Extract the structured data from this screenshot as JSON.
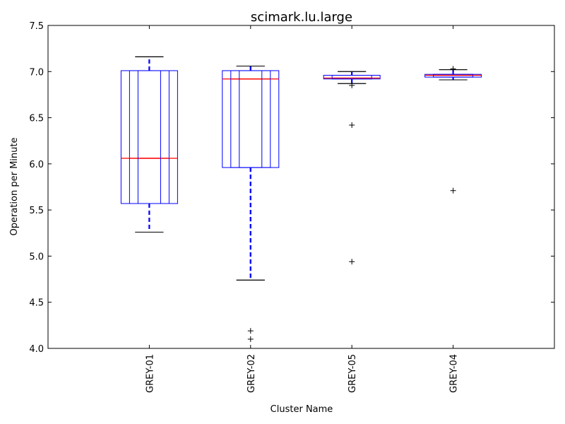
{
  "chart_data": {
    "type": "boxplot",
    "title": "scimark.lu.large",
    "xlabel": "Cluster Name",
    "ylabel": "Operation per Minute",
    "ylim": [
      4.0,
      7.5
    ],
    "yticks": [
      "4.0",
      "4.5",
      "5.0",
      "5.5",
      "6.0",
      "6.5",
      "7.0",
      "7.5"
    ],
    "categories": [
      "GREY-01",
      "GREY-02",
      "GREY-05",
      "GREY-04"
    ],
    "series": [
      {
        "name": "GREY-01",
        "boxes": [
          {
            "whislo": 5.26,
            "q1": 5.57,
            "med": 6.06,
            "q3": 7.01,
            "whishi": 7.16
          },
          {
            "whislo": 5.26,
            "q1": 5.57,
            "med": 6.06,
            "q3": 7.01,
            "whishi": 7.16
          },
          {
            "whislo": 5.26,
            "q1": 5.57,
            "med": 6.06,
            "q3": 7.01,
            "whishi": 7.16
          }
        ],
        "fliers": []
      },
      {
        "name": "GREY-02",
        "boxes": [
          {
            "whislo": 4.74,
            "q1": 5.96,
            "med": 6.92,
            "q3": 7.01,
            "whishi": 7.06
          },
          {
            "whislo": 4.74,
            "q1": 5.96,
            "med": 6.92,
            "q3": 7.01,
            "whishi": 7.06
          },
          {
            "whislo": 4.74,
            "q1": 5.96,
            "med": 6.92,
            "q3": 7.01,
            "whishi": 7.06
          }
        ],
        "fliers": [
          4.19,
          4.1
        ]
      },
      {
        "name": "GREY-05",
        "boxes": [
          {
            "whislo": 6.87,
            "q1": 6.92,
            "med": 6.93,
            "q3": 6.96,
            "whishi": 7.0
          },
          {
            "whislo": 6.87,
            "q1": 6.92,
            "med": 6.93,
            "q3": 6.96,
            "whishi": 7.0
          }
        ],
        "fliers": [
          6.85,
          6.42,
          4.94
        ]
      },
      {
        "name": "GREY-04",
        "boxes": [
          {
            "whislo": 6.91,
            "q1": 6.94,
            "med": 6.96,
            "q3": 6.97,
            "whishi": 7.02
          },
          {
            "whislo": 6.91,
            "q1": 6.94,
            "med": 6.96,
            "q3": 6.97,
            "whishi": 7.02
          }
        ],
        "fliers": [
          7.03,
          5.71
        ]
      }
    ],
    "colors": {
      "box": "#0000ff",
      "median": "#ff0000",
      "whisker": "#0000ff",
      "cap": "#000000",
      "flier": "#000000"
    }
  }
}
